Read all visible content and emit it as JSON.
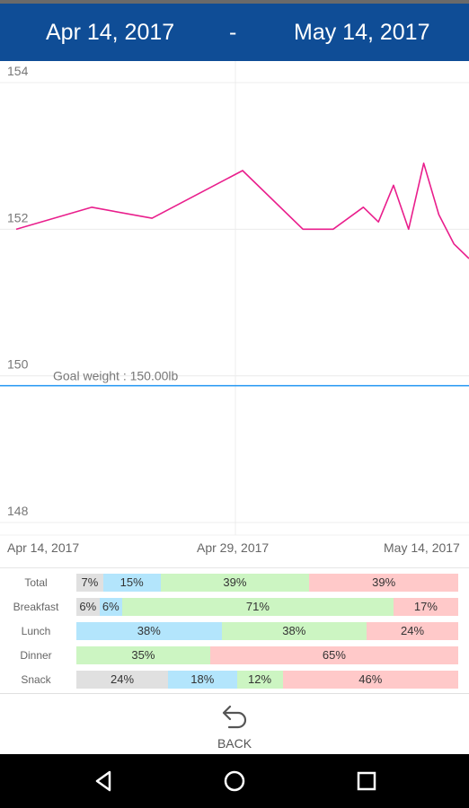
{
  "header": {
    "start_date": "Apr 14, 2017",
    "separator": "-",
    "end_date": "May 14, 2017",
    "bg_color": "#0f4d96"
  },
  "chart_data": {
    "type": "line",
    "x_ticks": [
      "Apr 14, 2017",
      "Apr 29, 2017",
      "May 14, 2017"
    ],
    "y_ticks": [
      "154",
      "152",
      "150",
      "148"
    ],
    "ylim": [
      148,
      154
    ],
    "grid": true,
    "goal_label": "Goal weight : 150.00lb",
    "goal_value": 150.0,
    "goal_color": "#2196f3",
    "series": [
      {
        "color": "#e91e8c",
        "points": [
          {
            "day": 0,
            "value": 152.0
          },
          {
            "day": 5,
            "value": 152.3
          },
          {
            "day": 9,
            "value": 152.15
          },
          {
            "day": 15,
            "value": 152.8
          },
          {
            "day": 19,
            "value": 152.0
          },
          {
            "day": 21,
            "value": 152.0
          },
          {
            "day": 23,
            "value": 152.3
          },
          {
            "day": 24,
            "value": 152.1
          },
          {
            "day": 25,
            "value": 152.6
          },
          {
            "day": 26,
            "value": 152.0
          },
          {
            "day": 27,
            "value": 152.9
          },
          {
            "day": 28,
            "value": 152.2
          },
          {
            "day": 29,
            "value": 151.8
          },
          {
            "day": 30,
            "value": 151.6
          }
        ]
      }
    ]
  },
  "macros": {
    "colors": {
      "grey": "#e0e0e0",
      "blue": "#b3e5fc",
      "green": "#ccf5c2",
      "red": "#ffc9c9"
    },
    "rows": [
      {
        "label": "Total",
        "segments": [
          {
            "pct": 7,
            "text": "7%",
            "color": "grey"
          },
          {
            "pct": 15,
            "text": "15%",
            "color": "blue"
          },
          {
            "pct": 39,
            "text": "39%",
            "color": "green"
          },
          {
            "pct": 39,
            "text": "39%",
            "color": "red"
          }
        ]
      },
      {
        "label": "Breakfast",
        "segments": [
          {
            "pct": 6,
            "text": "6%",
            "color": "grey"
          },
          {
            "pct": 6,
            "text": "6%",
            "color": "blue"
          },
          {
            "pct": 71,
            "text": "71%",
            "color": "green"
          },
          {
            "pct": 17,
            "text": "17%",
            "color": "red"
          }
        ]
      },
      {
        "label": "Lunch",
        "segments": [
          {
            "pct": 38,
            "text": "38%",
            "color": "blue"
          },
          {
            "pct": 38,
            "text": "38%",
            "color": "green"
          },
          {
            "pct": 24,
            "text": "24%",
            "color": "red"
          }
        ]
      },
      {
        "label": "Dinner",
        "segments": [
          {
            "pct": 35,
            "text": "35%",
            "color": "green"
          },
          {
            "pct": 65,
            "text": "65%",
            "color": "red"
          }
        ]
      },
      {
        "label": "Snack",
        "segments": [
          {
            "pct": 24,
            "text": "24%",
            "color": "grey"
          },
          {
            "pct": 18,
            "text": "18%",
            "color": "blue"
          },
          {
            "pct": 12,
            "text": "12%",
            "color": "green"
          },
          {
            "pct": 46,
            "text": "46%",
            "color": "red"
          }
        ]
      }
    ]
  },
  "back": {
    "label": "BACK",
    "icon": "undo-arrow-icon"
  },
  "navbar": {
    "icons": [
      "back-triangle-icon",
      "home-circle-icon",
      "recents-square-icon"
    ]
  }
}
